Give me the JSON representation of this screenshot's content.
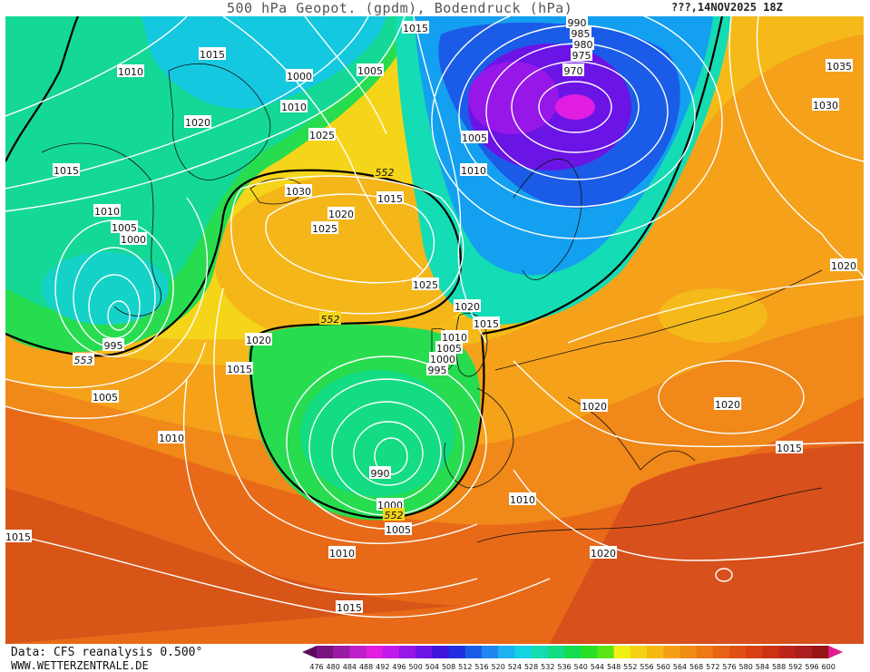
{
  "header": {
    "title": "500 hPa Geopot. (gpdm), Bodendruck (hPa)",
    "date": "???,14NOV2025 18Z"
  },
  "footer": {
    "data_source": "Data: CFS reanalysis 0.500°",
    "website": "WWW.WETTERZENTRALE.DE"
  },
  "legend": {
    "values": [
      "476",
      "480",
      "484",
      "488",
      "492",
      "496",
      "500",
      "504",
      "508",
      "512",
      "516",
      "520",
      "524",
      "528",
      "532",
      "536",
      "540",
      "544",
      "548",
      "552",
      "556",
      "560",
      "564",
      "568",
      "572",
      "576",
      "580",
      "584",
      "588",
      "592",
      "596",
      "600"
    ],
    "colors": [
      "#5c0a5c",
      "#7a127f",
      "#9b1aa3",
      "#bf1fc6",
      "#e01de0",
      "#c21ae8",
      "#9617e8",
      "#6b14e6",
      "#3d14dc",
      "#2030e0",
      "#1a5ce8",
      "#1f88f0",
      "#1cb2f0",
      "#14d2e0",
      "#14dcb2",
      "#14dc82",
      "#14dc50",
      "#28e028",
      "#5ae614",
      "#f0f014",
      "#f5d214",
      "#f5b914",
      "#f5a014",
      "#f08c14",
      "#ee7814",
      "#e86414",
      "#e05014",
      "#d84014",
      "#cc3214",
      "#bd2419",
      "#aa1e1e",
      "#961414",
      "#e01d8f"
    ]
  },
  "map": {
    "pressure_labels": [
      "1015",
      "1010",
      "1020",
      "1015",
      "1010",
      "1005",
      "1000",
      "995",
      "553",
      "1005",
      "1010",
      "1015",
      "1015",
      "1010",
      "1000",
      "1005",
      "1010",
      "1025",
      "1030",
      "1020",
      "1025",
      "552",
      "1015",
      "1025",
      "1020",
      "1015",
      "552",
      "1020",
      "1015",
      "1010",
      "1005",
      "1000",
      "995",
      "990",
      "1000",
      "552",
      "1005",
      "1010",
      "1015",
      "1010",
      "1020",
      "1005",
      "1010",
      "990",
      "985",
      "980",
      "975",
      "970",
      "1035",
      "1030",
      "1020",
      "1020",
      "1020",
      "1015"
    ]
  }
}
